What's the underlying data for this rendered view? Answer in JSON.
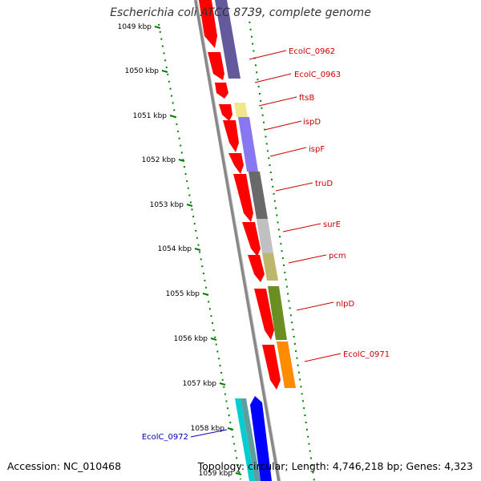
{
  "title": "Escherichia coli ATCC 8739, complete genome",
  "footer": {
    "accession": "Accession: NC_010468",
    "topology": "Topology: circular; Length: 4,746,218 bp; Genes: 4,323"
  },
  "ticks": [
    "1049 kbp",
    "1050 kbp",
    "1051 kbp",
    "1052 kbp",
    "1053 kbp",
    "1054 kbp",
    "1055 kbp",
    "1056 kbp",
    "1057 kbp",
    "1058 kbp",
    "1059 kbp"
  ],
  "gene_labels": [
    {
      "text": "EcolC_0962",
      "color": "#cc0000"
    },
    {
      "text": "EcolC_0963",
      "color": "#cc0000"
    },
    {
      "text": "ftsB",
      "color": "#cc0000"
    },
    {
      "text": "ispD",
      "color": "#cc0000"
    },
    {
      "text": "ispF",
      "color": "#cc0000"
    },
    {
      "text": "truD",
      "color": "#cc0000"
    },
    {
      "text": "surE",
      "color": "#cc0000"
    },
    {
      "text": "pcm",
      "color": "#cc0000"
    },
    {
      "text": "nlpD",
      "color": "#cc0000"
    },
    {
      "text": "EcolC_0971",
      "color": "#cc0000"
    },
    {
      "text": "EcolC_0972",
      "color": "#0000bb"
    }
  ],
  "colors": {
    "gene_red": "#ff0000",
    "backbone": "#888888",
    "tick_green": "#008000",
    "ftsB": "#f0e68c",
    "ispD": "#7b68ee",
    "truD": "#696969",
    "surE": "#c0c0c0",
    "pcm": "#bdb76b",
    "nlpD": "#6b8e23",
    "EcolC_0971": "#ff8c00",
    "EcolC_0962": "#483d8b",
    "EcolC_0972_a": "#00ced1",
    "EcolC_0972_b": "#5f9ea0",
    "EcolC_0972_c": "#0000ff"
  }
}
